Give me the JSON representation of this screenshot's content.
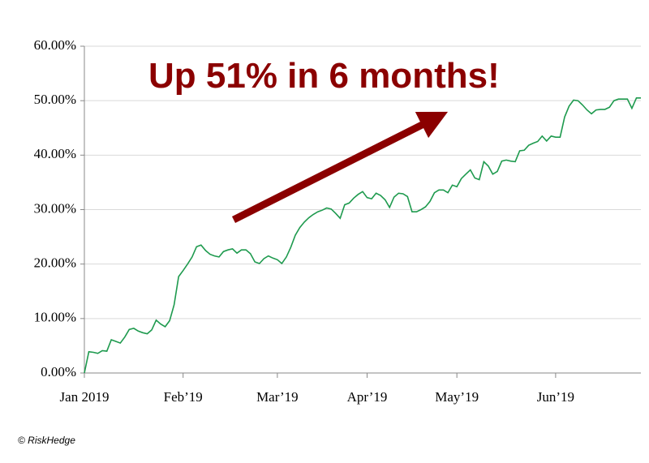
{
  "chart_data": {
    "type": "line",
    "annotation": "Up 51% in 6 months!",
    "source": "© RiskHedge",
    "color": "#1e9a4e",
    "grid": true,
    "categories": [
      "Jan 2019",
      null,
      null,
      null,
      null,
      null,
      null,
      null,
      null,
      null,
      null,
      null,
      null,
      null,
      null,
      null,
      null,
      null,
      null,
      null,
      null,
      null,
      "Feb’19",
      null,
      null,
      null,
      null,
      null,
      null,
      null,
      null,
      null,
      null,
      null,
      null,
      null,
      null,
      null,
      null,
      null,
      null,
      null,
      null,
      "Mar’19",
      null,
      null,
      null,
      null,
      null,
      null,
      null,
      null,
      null,
      null,
      null,
      null,
      null,
      null,
      null,
      null,
      null,
      null,
      null,
      "Apr’19",
      null,
      null,
      null,
      null,
      null,
      null,
      null,
      null,
      null,
      null,
      null,
      null,
      null,
      null,
      null,
      null,
      null,
      null,
      null,
      "May’19",
      null,
      null,
      null,
      null,
      null,
      null,
      null,
      null,
      null,
      null,
      null,
      null,
      null,
      null,
      null,
      null,
      null,
      null,
      null,
      null,
      null,
      "Jun’19",
      null,
      null,
      null,
      null,
      null,
      null,
      null,
      null,
      null,
      null,
      null,
      null,
      null,
      null,
      null,
      null,
      null,
      null,
      null
    ],
    "values": [
      0,
      3.9,
      3.8,
      3.6,
      4.1,
      4.0,
      6.1,
      5.8,
      5.5,
      6.6,
      8.0,
      8.2,
      7.7,
      7.4,
      7.2,
      7.9,
      9.7,
      9.0,
      8.5,
      9.6,
      12.5,
      17.7,
      18.8,
      20.0,
      21.3,
      23.2,
      23.5,
      22.5,
      21.8,
      21.5,
      21.3,
      22.3,
      22.6,
      22.8,
      22.0,
      22.6,
      22.6,
      21.9,
      20.4,
      20.1,
      21.0,
      21.5,
      21.1,
      20.8,
      20.1,
      21.3,
      23.1,
      25.3,
      26.7,
      27.7,
      28.5,
      29.1,
      29.6,
      29.9,
      30.3,
      30.1,
      29.3,
      28.4,
      30.9,
      31.2,
      32.1,
      32.8,
      33.3,
      32.2,
      32.0,
      33.0,
      32.6,
      31.8,
      30.4,
      32.3,
      33.0,
      32.9,
      32.4,
      29.6,
      29.6,
      30.0,
      30.5,
      31.5,
      33.1,
      33.6,
      33.6,
      33.1,
      34.5,
      34.2,
      35.7,
      36.5,
      37.3,
      35.8,
      35.5,
      38.8,
      38.0,
      36.5,
      37.0,
      38.9,
      39.1,
      38.9,
      38.8,
      40.8,
      40.9,
      41.8,
      42.2,
      42.5,
      43.5,
      42.6,
      43.5,
      43.3,
      43.3,
      47.0,
      49.0,
      50.1,
      50.0,
      49.2,
      48.3,
      47.6,
      48.3,
      48.4,
      48.4,
      48.8,
      50.0,
      50.3,
      50.3,
      50.3,
      48.6,
      50.5,
      50.5
    ],
    "ylim": [
      0,
      60
    ],
    "yticks": [
      {
        "value": 0,
        "label": "0.00%"
      },
      {
        "value": 10,
        "label": "10.00%"
      },
      {
        "value": 20,
        "label": "20.00%"
      },
      {
        "value": 30,
        "label": "30.00%"
      },
      {
        "value": 40,
        "label": "40.00%"
      },
      {
        "value": 50,
        "label": "50.00%"
      },
      {
        "value": 60,
        "label": "60.00%"
      }
    ]
  }
}
